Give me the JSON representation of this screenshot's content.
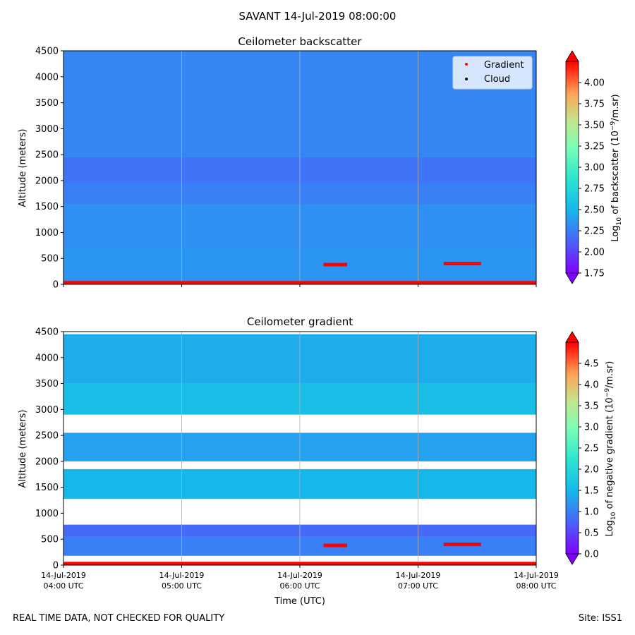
{
  "figure": {
    "suptitle": "SAVANT 14-Jul-2019 08:00:00",
    "footer_left": "REAL TIME DATA, NOT CHECKED FOR QUALITY",
    "footer_right": "Site: ISS1"
  },
  "chart_data": [
    {
      "type": "heatmap",
      "title": "Ceilometer backscatter",
      "xlabel": "",
      "ylabel": "Altitude (meters)",
      "xlim": [
        "2019-07-14T04:00",
        "2019-07-14T08:00"
      ],
      "ylim": [
        0,
        4500
      ],
      "yticks": [
        "0",
        "500",
        "1000",
        "1500",
        "2000",
        "2500",
        "3000",
        "3500",
        "4000",
        "4500"
      ],
      "grid": "vertical lines at x ticks",
      "colormap": "rainbow",
      "colorbar": {
        "label_main": "Log",
        "label_sub": "10",
        "label_rest": " of backscatter (10",
        "label_sup": "−9",
        "label_tail": "/m.sr)",
        "range": [
          1.75,
          4.25
        ],
        "ticks": [
          "1.75",
          "2.00",
          "2.25",
          "2.50",
          "2.75",
          "3.00",
          "3.25",
          "3.50",
          "3.75",
          "4.00"
        ]
      },
      "legend": {
        "placement": "top-right",
        "entries": [
          {
            "label": "Gradient",
            "color": "#ff0000"
          },
          {
            "label": "Cloud",
            "color": "#000000"
          }
        ]
      },
      "layers": [
        {
          "y0": 0,
          "y1": 700,
          "value": 2.35
        },
        {
          "y0": 700,
          "y1": 1550,
          "value": 2.33
        },
        {
          "y0": 1550,
          "y1": 1950,
          "value": 2.25
        },
        {
          "y0": 1950,
          "y1": 2450,
          "value": 2.2
        },
        {
          "y0": 2450,
          "y1": 4500,
          "value": 2.28
        }
      ],
      "gradient_points": [
        {
          "t0": "04:00",
          "t1": "08:00",
          "alt": 30
        },
        {
          "t0": "06:12",
          "t1": "06:24",
          "alt": 380
        },
        {
          "t0": "07:13",
          "t1": "07:32",
          "alt": 400
        }
      ]
    },
    {
      "type": "heatmap",
      "title": "Ceilometer gradient",
      "xlabel": "Time (UTC)",
      "ylabel": "Altitude (meters)",
      "xlim": [
        "2019-07-14T04:00",
        "2019-07-14T08:00"
      ],
      "ylim": [
        0,
        4500
      ],
      "yticks": [
        "0",
        "500",
        "1000",
        "1500",
        "2000",
        "2500",
        "3000",
        "3500",
        "4000",
        "4500"
      ],
      "xticks": [
        {
          "date": "14-Jul-2019",
          "time": "04:00 UTC"
        },
        {
          "date": "14-Jul-2019",
          "time": "05:00 UTC"
        },
        {
          "date": "14-Jul-2019",
          "time": "06:00 UTC"
        },
        {
          "date": "14-Jul-2019",
          "time": "07:00 UTC"
        },
        {
          "date": "14-Jul-2019",
          "time": "08:00 UTC"
        }
      ],
      "grid": "vertical lines at x ticks",
      "colormap": "rainbow",
      "colorbar": {
        "label_main": "Log",
        "label_sub": "10",
        "label_rest": " of negative gradient (10",
        "label_sup": "−9",
        "label_tail": "/m.sr)",
        "range": [
          0,
          5
        ],
        "ticks": [
          "0.0",
          "0.5",
          "1.0",
          "1.5",
          "2.0",
          "2.5",
          "3.0",
          "3.5",
          "4.0",
          "4.5"
        ]
      },
      "layers": [
        {
          "y0": 1280,
          "y1": 1850,
          "value": 1.5
        },
        {
          "y0": 2000,
          "y1": 2550,
          "value": 1.3
        },
        {
          "y0": 2900,
          "y1": 3500,
          "value": 1.6
        },
        {
          "y0": 3500,
          "y1": 4450,
          "value": 1.4
        },
        {
          "y0": 180,
          "y1": 550,
          "value": 1.0
        },
        {
          "y0": 550,
          "y1": 780,
          "value": 0.8
        }
      ],
      "gradient_points": [
        {
          "t0": "04:00",
          "t1": "08:00",
          "alt": 30
        },
        {
          "t0": "06:12",
          "t1": "06:24",
          "alt": 380
        },
        {
          "t0": "07:13",
          "t1": "07:32",
          "alt": 400
        }
      ]
    }
  ]
}
